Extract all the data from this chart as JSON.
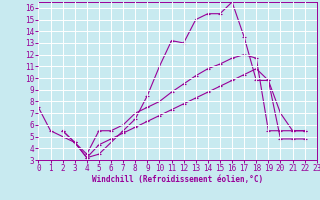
{
  "xlabel": "Windchill (Refroidissement éolien,°C)",
  "bg_color": "#c8eaf0",
  "line_color": "#990099",
  "grid_color": "#aadddd",
  "xlim": [
    0,
    23
  ],
  "ylim": [
    3,
    16.5
  ],
  "xticks": [
    0,
    1,
    2,
    3,
    4,
    5,
    6,
    7,
    8,
    9,
    10,
    11,
    12,
    13,
    14,
    15,
    16,
    17,
    18,
    19,
    20,
    21,
    22,
    23
  ],
  "yticks": [
    3,
    4,
    5,
    6,
    7,
    8,
    9,
    10,
    11,
    12,
    13,
    14,
    15,
    16
  ],
  "line1_x": [
    0,
    1,
    2,
    3,
    4,
    5,
    7,
    8,
    9,
    10,
    11,
    12,
    13,
    14,
    15,
    16,
    17,
    18,
    19,
    20,
    21,
    22
  ],
  "line1_y": [
    7.5,
    5.5,
    5.0,
    4.5,
    3.2,
    3.5,
    5.5,
    6.5,
    8.5,
    11.0,
    13.2,
    13.0,
    15.0,
    15.5,
    15.5,
    16.5,
    13.5,
    9.8,
    9.8,
    7.0,
    5.5,
    5.5
  ],
  "line2_x": [
    2,
    3,
    4,
    5,
    6,
    7,
    8,
    9,
    10,
    11,
    12,
    13,
    14,
    15,
    16,
    17,
    18,
    19,
    20,
    21,
    22
  ],
  "line2_y": [
    5.5,
    4.5,
    3.5,
    5.5,
    5.5,
    6.0,
    7.0,
    7.5,
    8.0,
    8.8,
    9.5,
    10.2,
    10.8,
    11.2,
    11.7,
    12.0,
    11.7,
    5.5,
    5.5,
    5.5,
    5.5
  ],
  "line3_x": [
    2,
    3,
    4,
    5,
    6,
    7,
    8,
    9,
    10,
    11,
    12,
    13,
    14,
    15,
    16,
    17,
    18,
    19,
    20,
    21,
    22
  ],
  "line3_y": [
    5.5,
    4.5,
    3.2,
    4.3,
    4.8,
    5.3,
    5.8,
    6.3,
    6.8,
    7.3,
    7.8,
    8.3,
    8.8,
    9.3,
    9.8,
    10.3,
    10.8,
    9.8,
    4.8,
    4.8,
    4.8
  ]
}
